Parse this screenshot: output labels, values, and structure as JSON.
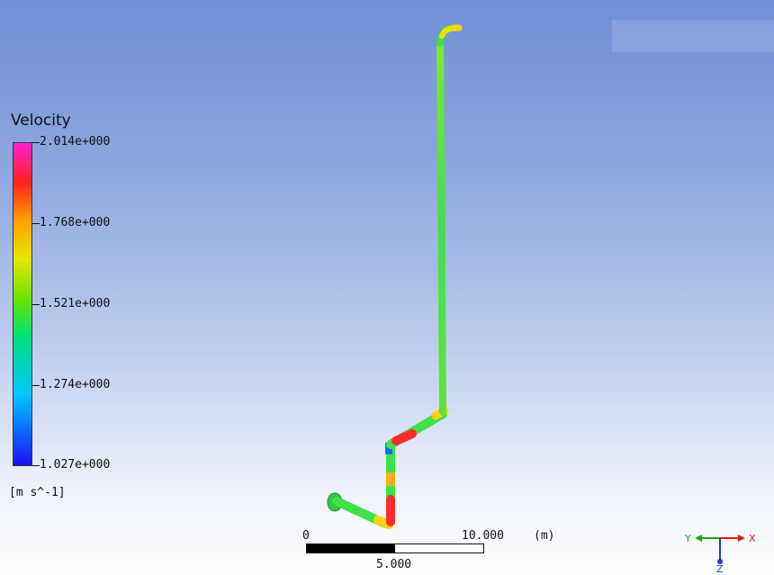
{
  "legend": {
    "title": "Velocity",
    "max": "2.014e+000",
    "v4": "1.768e+000",
    "v3": "1.521e+000",
    "v2": "1.274e+000",
    "min": "1.027e+000",
    "units": "[m s^-1]"
  },
  "scale": {
    "start": "0",
    "mid": "5.000",
    "end": "10.000",
    "unit": "(m)"
  },
  "axes": {
    "x": "X",
    "y": "Y",
    "z": "Z"
  },
  "colors": {
    "pipe": "#3fe04a",
    "hot": "#ff2a2a",
    "cold": "#1a6cff",
    "x_axis": "#e01a1a",
    "y_axis": "#1aa81a",
    "z_axis": "#1a3cd0"
  }
}
